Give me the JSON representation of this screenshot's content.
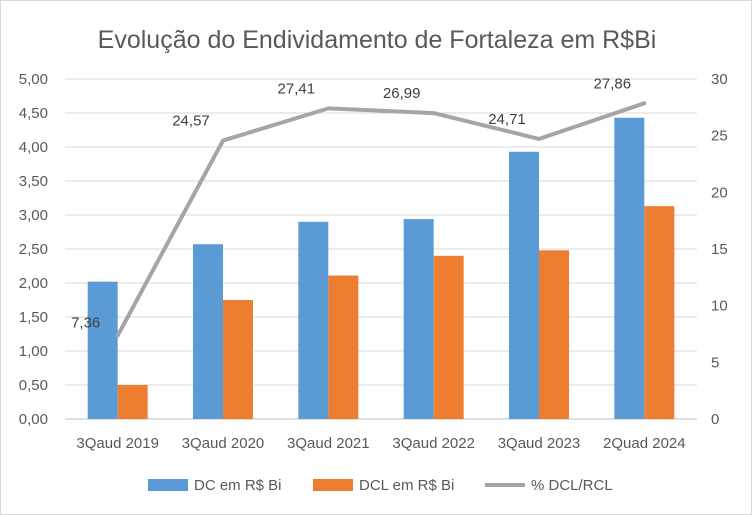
{
  "chart_data": {
    "type": "bar",
    "title": "Evolução do Endividamento de Fortaleza em R$Bi",
    "categories": [
      "3Qaud 2019",
      "3Qaud 2020",
      "3Qaud 2021",
      "3Qaud 2022",
      "3Qaud 2023",
      "2Quad 2024"
    ],
    "series": [
      {
        "name": "DC em R$ Bi",
        "type": "bar",
        "axis": "left",
        "color": "#5b9bd5",
        "values": [
          2.02,
          2.57,
          2.9,
          2.94,
          3.93,
          4.43
        ]
      },
      {
        "name": "DCL  em R$ Bi",
        "type": "bar",
        "axis": "left",
        "color": "#ed7d31",
        "values": [
          0.5,
          1.75,
          2.11,
          2.4,
          2.48,
          3.13
        ]
      },
      {
        "name": "% DCL/RCL",
        "type": "line",
        "axis": "right",
        "color": "#a5a5a5",
        "values": [
          7.36,
          24.57,
          27.41,
          26.99,
          24.71,
          27.86
        ],
        "labels": [
          "7,36",
          "24,57",
          "27,41",
          "26,99",
          "24,71",
          "27,86"
        ]
      }
    ],
    "y_left": {
      "min": 0,
      "max": 5,
      "step": 0.5,
      "ticks": [
        "0,00",
        "0,50",
        "1,00",
        "1,50",
        "2,00",
        "2,50",
        "3,00",
        "3,50",
        "4,00",
        "4,50",
        "5,00"
      ]
    },
    "y_right": {
      "min": 0,
      "max": 30,
      "step": 5,
      "ticks": [
        "0",
        "5",
        "10",
        "15",
        "20",
        "25",
        "30"
      ]
    },
    "grid": true,
    "legend_position": "bottom"
  }
}
